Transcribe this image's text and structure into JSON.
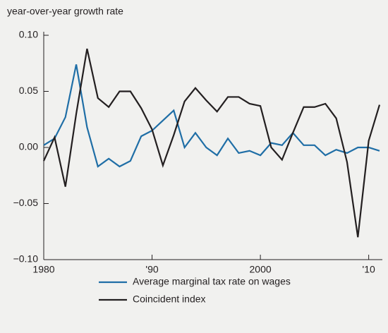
{
  "chart_data": {
    "type": "line",
    "y_label": "year-over-year growth rate",
    "x": [
      1980,
      1981,
      1982,
      1983,
      1984,
      1985,
      1986,
      1987,
      1988,
      1989,
      1990,
      1991,
      1992,
      1993,
      1994,
      1995,
      1996,
      1997,
      1998,
      1999,
      2000,
      2001,
      2002,
      2003,
      2004,
      2005,
      2006,
      2007,
      2008,
      2009,
      2010,
      2011
    ],
    "series": [
      {
        "name": "Average marginal tax rate on wages",
        "color": "#1f6ea6",
        "values": [
          0.002,
          0.008,
          0.027,
          0.074,
          0.018,
          -0.017,
          -0.01,
          -0.017,
          -0.012,
          0.01,
          0.015,
          0.024,
          0.033,
          0.0,
          0.013,
          0.0,
          -0.007,
          0.008,
          -0.005,
          -0.003,
          -0.007,
          0.004,
          0.002,
          0.013,
          0.002,
          0.002,
          -0.007,
          -0.002,
          -0.005,
          0.0,
          0.0,
          -0.003
        ]
      },
      {
        "name": "Coincident index",
        "color": "#231f20",
        "values": [
          -0.012,
          0.009,
          -0.035,
          0.03,
          0.088,
          0.044,
          0.036,
          0.05,
          0.05,
          0.035,
          0.016,
          -0.016,
          0.011,
          0.041,
          0.053,
          0.042,
          0.032,
          0.045,
          0.045,
          0.039,
          0.037,
          0.0,
          -0.011,
          0.013,
          0.036,
          0.036,
          0.039,
          0.026,
          -0.013,
          -0.08,
          0.006,
          0.038
        ]
      }
    ],
    "xlim": [
      1980,
      2011
    ],
    "xticks": [
      1980,
      {
        "value": 1990,
        "label": "'90"
      },
      2000,
      {
        "value": 2010,
        "label": "'10"
      }
    ],
    "ylim": [
      -0.1,
      0.1
    ],
    "yticks": [
      {
        "value": 0.1,
        "label": "0.10"
      },
      {
        "value": 0.05,
        "label": "0.05"
      },
      {
        "value": 0,
        "label": "0.00"
      },
      {
        "value": -0.05,
        "label": "−0.05"
      },
      {
        "value": -0.1,
        "label": "−0.10"
      }
    ],
    "grid": false,
    "legend": "bottom"
  }
}
